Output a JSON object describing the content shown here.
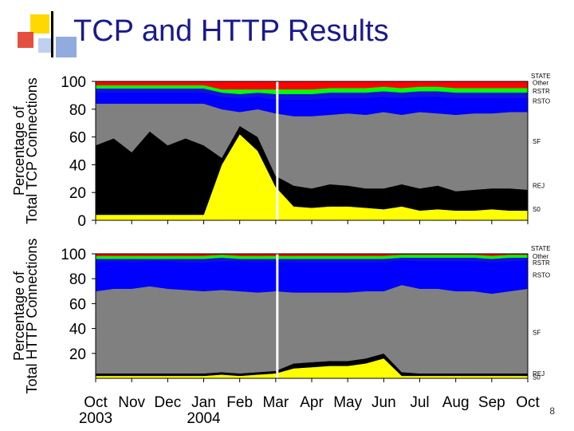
{
  "slide": {
    "title": "TCP and HTTP Results",
    "page_number": "8"
  },
  "chart_data": [
    {
      "type": "area",
      "ylabel": "Percentage of Total TCP Connections",
      "ylim": [
        0,
        100
      ],
      "yticks": [
        "0",
        "20",
        "40",
        "60",
        "80",
        "100"
      ],
      "series": [
        {
          "name": "S0",
          "color": "#ffff00"
        },
        {
          "name": "REJ",
          "color": "#000000"
        },
        {
          "name": "SF",
          "color": "#808080"
        },
        {
          "name": "RSTO",
          "color": "#0000ff"
        },
        {
          "name": "RSTR",
          "color": "#0000ff"
        },
        {
          "name": "Other",
          "color": "#00ff00"
        },
        {
          "name": "STATE",
          "color": "#ff0000"
        }
      ],
      "legend_title": "STATE",
      "legend_labels": [
        {
          "label": "Other",
          "y": 99
        },
        {
          "label": "RSTR",
          "y": 93
        },
        {
          "label": "RSTO",
          "y": 86
        },
        {
          "label": "SF",
          "y": 57
        },
        {
          "label": "REJ",
          "y": 25
        },
        {
          "label": "S0",
          "y": 8
        }
      ],
      "x_months": [
        0,
        0.5,
        1,
        1.5,
        2,
        2.5,
        3,
        3.5,
        4,
        4.5,
        5,
        5.5,
        6,
        6.5,
        7,
        7.5,
        8,
        8.5,
        9,
        9.5,
        10,
        10.5,
        11,
        11.5,
        12
      ],
      "s0": [
        4,
        4,
        4,
        4,
        4,
        4,
        4,
        40,
        62,
        50,
        24,
        10,
        9,
        10,
        10,
        9,
        8,
        10,
        7,
        8,
        7,
        7,
        8,
        7,
        7
      ],
      "rej": [
        50,
        55,
        45,
        60,
        50,
        55,
        50,
        5,
        6,
        10,
        8,
        15,
        14,
        16,
        15,
        14,
        15,
        16,
        16,
        17,
        14,
        15,
        15,
        16,
        15
      ],
      "sf": [
        30,
        25,
        35,
        20,
        30,
        25,
        30,
        35,
        10,
        20,
        45,
        50,
        52,
        50,
        52,
        53,
        55,
        50,
        55,
        52,
        55,
        55,
        54,
        55,
        56
      ],
      "rsto": [
        8,
        8,
        8,
        8,
        8,
        8,
        8,
        9,
        10,
        9,
        10,
        12,
        12,
        12,
        11,
        12,
        11,
        12,
        11,
        12,
        12,
        11,
        11,
        10,
        10
      ],
      "rstr": [
        3,
        3,
        3,
        3,
        3,
        3,
        3,
        3,
        3,
        3,
        4,
        4,
        4,
        4,
        4,
        4,
        4,
        4,
        4,
        4,
        4,
        4,
        4,
        4,
        4
      ],
      "other": [
        2,
        2,
        2,
        2,
        2,
        2,
        2,
        2,
        3,
        2,
        3,
        3,
        3,
        3,
        3,
        3,
        3,
        3,
        3,
        3,
        3,
        3,
        3,
        3,
        3
      ]
    },
    {
      "type": "area",
      "ylabel": "Percentage of Total HTTP Connections",
      "ylim": [
        0,
        100
      ],
      "yticks": [
        "20",
        "40",
        "60",
        "80",
        "100"
      ],
      "series": [
        {
          "name": "S0",
          "color": "#ffff00"
        },
        {
          "name": "REJ",
          "color": "#000000"
        },
        {
          "name": "SF",
          "color": "#808080"
        },
        {
          "name": "RSTO",
          "color": "#0000ff"
        },
        {
          "name": "RSTR",
          "color": "#0000ff"
        },
        {
          "name": "Other",
          "color": "#00ff00"
        },
        {
          "name": "STATE",
          "color": "#ff0000"
        }
      ],
      "legend_title": "STATE",
      "legend_labels": [
        {
          "label": "Other",
          "y": 98
        },
        {
          "label": "RSTR",
          "y": 93
        },
        {
          "label": "RSTO",
          "y": 83
        },
        {
          "label": "SF",
          "y": 37
        },
        {
          "label": "REJ",
          "y": 4
        },
        {
          "label": "S0",
          "y": 1
        }
      ],
      "x_months": [
        0,
        0.5,
        1,
        1.5,
        2,
        2.5,
        3,
        3.5,
        4,
        4.5,
        5,
        5.5,
        6,
        6.5,
        7,
        7.5,
        8,
        8.5,
        9,
        9.5,
        10,
        10.5,
        11,
        11.5,
        12
      ],
      "s0": [
        2,
        2,
        2,
        2,
        2,
        2,
        2,
        3,
        2,
        3,
        4,
        8,
        9,
        10,
        10,
        12,
        16,
        2,
        2,
        2,
        2,
        2,
        2,
        2,
        2
      ],
      "rej": [
        2,
        2,
        2,
        2,
        2,
        2,
        2,
        2,
        2,
        2,
        2,
        4,
        4,
        4,
        4,
        4,
        4,
        3,
        2,
        2,
        2,
        2,
        2,
        2,
        2
      ],
      "sf": [
        66,
        68,
        68,
        70,
        68,
        67,
        66,
        66,
        66,
        64,
        64,
        57,
        56,
        55,
        55,
        54,
        50,
        70,
        68,
        68,
        66,
        66,
        64,
        66,
        68
      ],
      "rsto": [
        23,
        22,
        21,
        20,
        22,
        22,
        23,
        23,
        24,
        24,
        24,
        24,
        24,
        24,
        24,
        23,
        23,
        20,
        22,
        22,
        24,
        24,
        25,
        24,
        23
      ],
      "rstr": [
        3,
        2,
        3,
        2,
        2,
        3,
        3,
        3,
        2,
        3,
        2,
        3,
        3,
        3,
        3,
        3,
        3,
        2,
        3,
        3,
        3,
        3,
        3,
        3,
        2
      ],
      "other": [
        2,
        2,
        2,
        2,
        2,
        2,
        2,
        2,
        2,
        2,
        2,
        2,
        2,
        2,
        2,
        2,
        2,
        2,
        2,
        2,
        2,
        2,
        2,
        2,
        2
      ]
    }
  ],
  "x_axis": {
    "tick_labels": [
      "Oct",
      "Nov",
      "Dec",
      "Jan",
      "Feb",
      "Mar",
      "Apr",
      "May",
      "Jun",
      "Jul",
      "Aug",
      "Sep",
      "Oct"
    ],
    "year_labels": [
      {
        "label": "2003",
        "at": 0
      },
      {
        "label": "2004",
        "at": 3
      }
    ]
  }
}
